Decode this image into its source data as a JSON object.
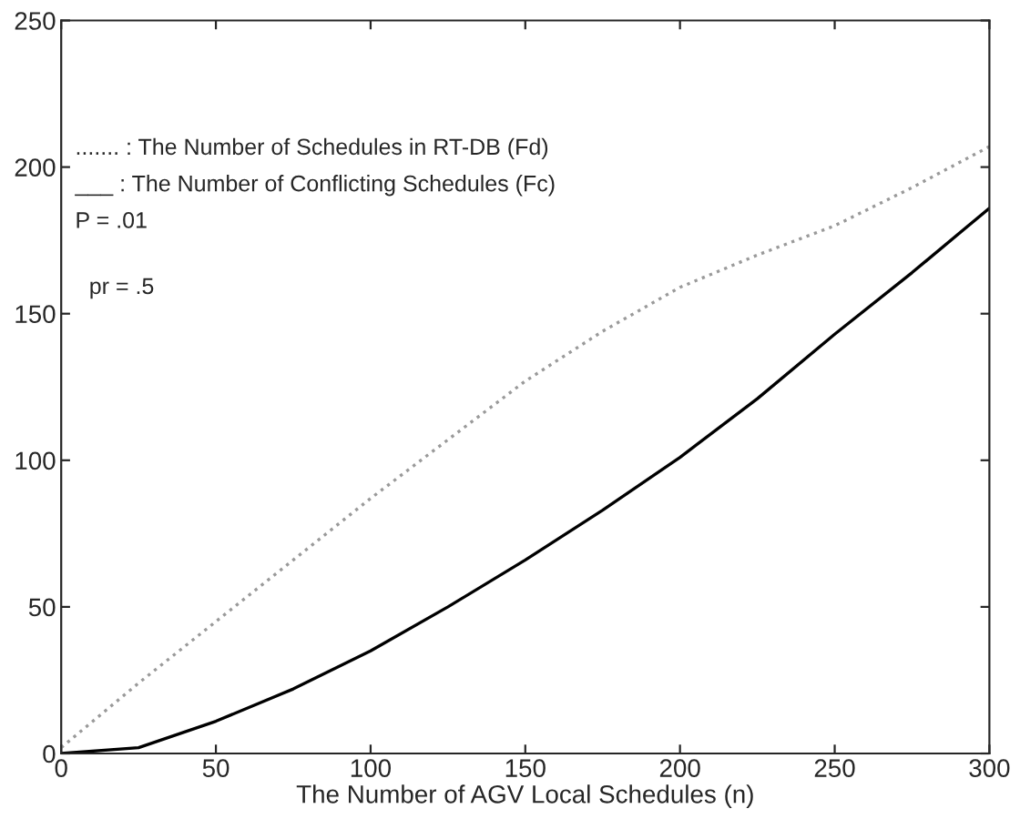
{
  "chart_data": {
    "type": "line",
    "xlabel": "The Number of AGV Local Schedules (n)",
    "x": [
      0,
      25,
      50,
      75,
      100,
      125,
      150,
      175,
      200,
      225,
      250,
      275,
      300
    ],
    "series": [
      {
        "color": "#9a9a9a",
        "line_style": "dotted",
        "values": [
          2,
          24,
          45,
          66,
          87,
          107,
          127,
          144,
          159,
          170,
          180,
          193,
          207
        ]
      },
      {
        "color": "#000000",
        "line_style": "solid",
        "values": [
          0,
          2,
          11,
          22,
          35,
          50,
          66,
          83,
          101,
          121,
          143,
          164,
          186
        ]
      }
    ],
    "xlim": [
      0,
      300
    ],
    "ylim": [
      0,
      250
    ],
    "xticks": [
      0,
      50,
      100,
      150,
      200,
      250,
      300
    ],
    "yticks": [
      0,
      50,
      100,
      150,
      200,
      250
    ],
    "grid": false,
    "marker": "none",
    "annotations": [
      "....... : The Number of Schedules in RT-DB (Fd)",
      "___ : The Number of Conflicting Schedules (Fc)",
      "P = .01",
      "pr = .5"
    ]
  }
}
